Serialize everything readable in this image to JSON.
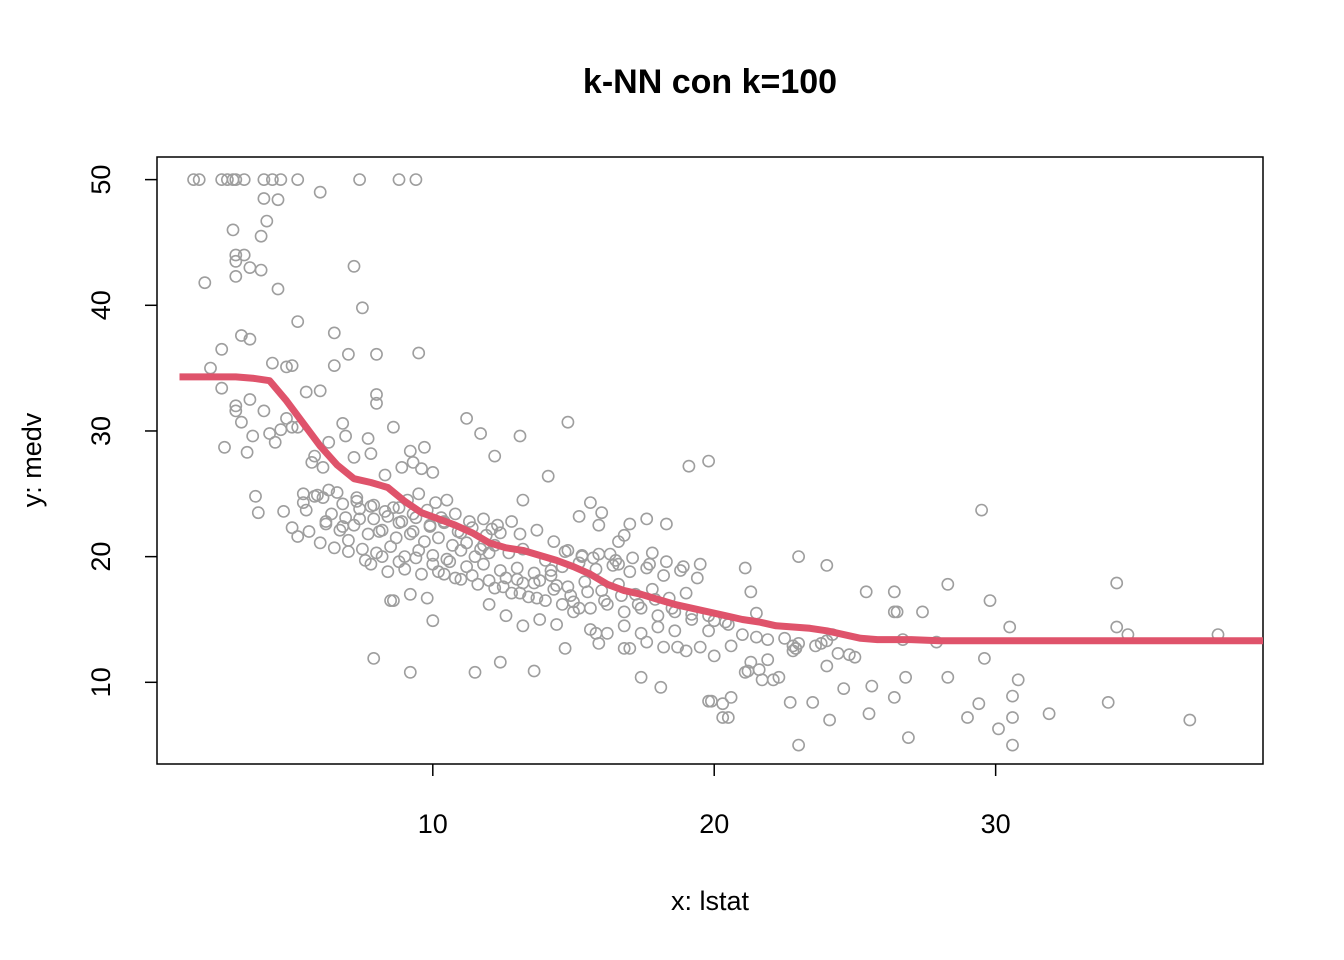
{
  "chart_data": {
    "type": "scatter",
    "title": "k-NN con k=100",
    "xlabel": "x: lstat",
    "ylabel": "y: medv",
    "xlim": [
      0.2,
      39.5
    ],
    "ylim": [
      3.5,
      51.8
    ],
    "xticks": [
      10,
      20,
      30
    ],
    "yticks": [
      10,
      20,
      30,
      40,
      50
    ],
    "grid": false,
    "legend": "none",
    "colors": {
      "points": "#9e9e9e",
      "fit": "#df536b"
    },
    "series": [
      {
        "kind": "scatter",
        "x": [
          1.5,
          1.7,
          2.5,
          2.7,
          2.9,
          3.0,
          3.3,
          4.0,
          4.3,
          4.6,
          5.2,
          6.0,
          7.4,
          8.8,
          9.4,
          1.9,
          2.1,
          2.5,
          2.9,
          3.0,
          3.3,
          3.5,
          3.9,
          4.0,
          4.5,
          3.0,
          3.0,
          3.2,
          3.5,
          3.9,
          4.1,
          3.0,
          3.5,
          3.6,
          4.5,
          5.2,
          6.5,
          7.2,
          7.5,
          8.0,
          9.5,
          2.5,
          3.0,
          4.0,
          4.3,
          4.8,
          5.0,
          5.5,
          6.0,
          6.5,
          7.0,
          8.0,
          2.6,
          3.2,
          3.4,
          3.7,
          4.2,
          4.6,
          5.0,
          5.7,
          6.3,
          6.8,
          7.7,
          8.0,
          8.6,
          9.2,
          9.7,
          4.4,
          4.8,
          5.2,
          5.8,
          6.1,
          6.9,
          7.2,
          7.8,
          8.3,
          8.9,
          9.3,
          9.6,
          10.0,
          3.8,
          4.7,
          5.4,
          6.1,
          6.6,
          7.3,
          7.9,
          8.6,
          9.1,
          9.5,
          10.1,
          10.5,
          5.0,
          5.5,
          6.2,
          6.8,
          7.4,
          8.1,
          8.8,
          9.3,
          9.9,
          10.4,
          11.0,
          5.2,
          5.6,
          6.0,
          6.5,
          7.0,
          7.5,
          8.0,
          8.5,
          9.0,
          9.5,
          10.0,
          10.5,
          11.0,
          11.5,
          12.0,
          5.4,
          5.9,
          6.4,
          6.9,
          7.4,
          7.9,
          8.4,
          8.9,
          9.4,
          9.9,
          10.4,
          10.9,
          11.4,
          11.9,
          12.4,
          5.8,
          6.3,
          6.8,
          7.3,
          7.8,
          8.3,
          8.8,
          9.3,
          9.8,
          10.3,
          10.8,
          11.3,
          11.8,
          12.3,
          12.8,
          6.2,
          6.7,
          7.2,
          7.7,
          8.2,
          8.7,
          9.2,
          9.7,
          10.2,
          10.7,
          11.2,
          11.7,
          12.2,
          12.7,
          13.2,
          7.0,
          7.6,
          8.2,
          8.8,
          9.4,
          10.0,
          10.6,
          11.2,
          11.8,
          12.4,
          13.0,
          13.6,
          14.2,
          7.8,
          8.4,
          9.0,
          9.6,
          10.2,
          10.8,
          11.4,
          12.0,
          12.6,
          13.2,
          13.8,
          14.4,
          8.6,
          9.2,
          9.8,
          10.4,
          11.0,
          11.6,
          12.2,
          12.8,
          13.4,
          14.0,
          14.6,
          15.2,
          11.2,
          11.7,
          12.2,
          13.1,
          14.8,
          15.9,
          16.8,
          17.6,
          18.3,
          19.1,
          19.8,
          12.0,
          12.6,
          13.2,
          13.8,
          14.4,
          15.0,
          15.6,
          16.2,
          16.8,
          17.4,
          18.0,
          18.6,
          12.5,
          13.1,
          13.7,
          14.3,
          14.9,
          15.5,
          16.1,
          16.7,
          17.3,
          17.9,
          18.5,
          19.2,
          13.0,
          13.6,
          14.2,
          14.8,
          15.4,
          16.0,
          16.6,
          17.2,
          17.8,
          18.4,
          19.0,
          14.0,
          14.6,
          15.2,
          15.8,
          16.4,
          17.0,
          17.6,
          18.2,
          18.8,
          19.4,
          15.0,
          15.6,
          16.2,
          16.8,
          17.4,
          18.0,
          18.6,
          19.2,
          19.8,
          20.4,
          14.7,
          15.3,
          15.9,
          16.5,
          17.1,
          17.7,
          18.3,
          18.9,
          19.5,
          11.8,
          12.1,
          13.2,
          14.1,
          15.2,
          15.6,
          16.0,
          16.6,
          17.0,
          17.8,
          15.8,
          17.0,
          17.6,
          18.2,
          19.0,
          19.5,
          20.0,
          20.5,
          21.0,
          21.5,
          19.8,
          20.5,
          21.1,
          21.7,
          22.3,
          22.9,
          23.5,
          24.1,
          20.0,
          20.6,
          21.3,
          21.9,
          22.8,
          23.6,
          24.2,
          24.8,
          21.1,
          21.3,
          21.5,
          21.9,
          22.5,
          23.0,
          23.8,
          24.4,
          23.0,
          24.0,
          25.4,
          26.4,
          26.4,
          27.4,
          28.3,
          29.5,
          29.8,
          26.4,
          26.8,
          27.9,
          28.3,
          29.0,
          29.4,
          30.6,
          30.8,
          31.9,
          25.6,
          26.5,
          26.9,
          29.6,
          30.1,
          30.6,
          30.6,
          22.8,
          23.0,
          24.0,
          24.6,
          25.0,
          34.3,
          34.3,
          34.7,
          37.9,
          34.0,
          36.9,
          20.3,
          19.9,
          19.8,
          20.6,
          20.3,
          22.7,
          22.9,
          24.0,
          25.5,
          26.7,
          30.5,
          16.8,
          17.4,
          18.1,
          18.7,
          21.2,
          21.6,
          22.1,
          13.1,
          13.7,
          14.3,
          14.8,
          15.3,
          15.7,
          16.3,
          16.6,
          7.9,
          8.5,
          9.2,
          10.0,
          11.5,
          12.4,
          13.6,
          14.7,
          15.9
        ],
        "y": [
          50,
          50,
          50,
          50,
          50,
          50,
          50,
          50,
          50,
          50,
          50,
          49,
          50,
          50,
          50,
          41.8,
          35,
          36.5,
          46,
          44,
          44,
          43,
          45.5,
          48.5,
          48.4,
          43.5,
          42.3,
          37.6,
          37.3,
          42.8,
          46.7,
          32,
          32.5,
          29.6,
          41.3,
          38.7,
          37.8,
          43.1,
          39.8,
          36.1,
          36.2,
          33.4,
          31.6,
          31.6,
          35.4,
          35.1,
          35.2,
          33.1,
          33.2,
          35.2,
          36.1,
          32.9,
          28.7,
          30.7,
          28.3,
          24.8,
          29.8,
          30.1,
          30.3,
          27.5,
          29.1,
          30.6,
          29.4,
          32.2,
          30.3,
          28.4,
          28.7,
          29.1,
          31.0,
          30.3,
          28.0,
          27.1,
          29.6,
          27.9,
          28.2,
          26.5,
          27.1,
          27.5,
          27.0,
          26.7,
          23.5,
          23.6,
          25.0,
          24.7,
          25.1,
          24.4,
          24.1,
          23.9,
          24.5,
          25.0,
          24.3,
          24.5,
          22.3,
          23.7,
          22.6,
          22.4,
          23.0,
          22.0,
          22.7,
          22.0,
          22.5,
          22.8,
          21.9,
          21.6,
          22.0,
          21.1,
          20.7,
          21.3,
          20.6,
          20.3,
          20.8,
          20.0,
          20.5,
          20.1,
          19.8,
          20.5,
          20.0,
          20.3,
          24.3,
          24.9,
          23.4,
          23.1,
          23.8,
          23.0,
          23.2,
          22.8,
          23.1,
          22.4,
          22.7,
          22.0,
          22.3,
          21.7,
          21.9,
          24.8,
          25.3,
          24.2,
          24.7,
          24.0,
          23.6,
          23.9,
          23.4,
          23.7,
          23.1,
          23.4,
          22.8,
          23.0,
          22.5,
          22.8,
          22.8,
          22.1,
          22.5,
          21.8,
          22.1,
          21.5,
          21.8,
          21.2,
          21.5,
          20.9,
          21.1,
          20.6,
          20.9,
          20.3,
          20.6,
          20.4,
          19.7,
          20.0,
          19.6,
          19.9,
          19.4,
          19.6,
          19.2,
          19.4,
          18.9,
          19.1,
          18.7,
          18.9,
          19.4,
          18.8,
          19.0,
          18.6,
          18.8,
          18.3,
          18.5,
          18.1,
          18.3,
          17.9,
          18.1,
          17.7,
          16.5,
          17.0,
          16.7,
          18.6,
          18.2,
          17.8,
          17.5,
          17.1,
          16.8,
          16.5,
          16.2,
          15.9,
          31.0,
          29.8,
          28.0,
          29.6,
          30.7,
          22.5,
          21.7,
          23.0,
          22.6,
          27.2,
          27.6,
          16.2,
          15.3,
          14.5,
          15.0,
          14.6,
          15.6,
          14.2,
          13.9,
          14.5,
          13.9,
          14.4,
          14.1,
          17.6,
          17.1,
          16.7,
          17.4,
          16.9,
          17.2,
          16.5,
          16.9,
          16.2,
          16.6,
          15.9,
          15.4,
          18.2,
          17.9,
          18.5,
          17.6,
          18.0,
          17.3,
          17.8,
          17.0,
          17.4,
          16.7,
          17.1,
          19.7,
          19.2,
          19.5,
          19.0,
          19.3,
          18.8,
          19.1,
          18.5,
          18.9,
          18.3,
          16.4,
          15.9,
          16.2,
          15.6,
          15.9,
          15.3,
          15.6,
          15.0,
          15.3,
          14.8,
          20.4,
          20.0,
          20.2,
          19.7,
          19.9,
          19.4,
          19.6,
          19.2,
          19.4,
          20.9,
          22.2,
          24.5,
          26.4,
          23.2,
          24.3,
          23.5,
          21.2,
          22.6,
          20.3,
          13.9,
          12.7,
          13.2,
          12.8,
          12.5,
          12.8,
          14.9,
          14.6,
          13.8,
          13.6,
          8.5,
          7.2,
          10.8,
          10.2,
          10.4,
          12.7,
          8.4,
          7.0,
          12.1,
          12.9,
          11.6,
          11.8,
          12.9,
          12.9,
          13.8,
          12.2,
          19.1,
          17.2,
          15.5,
          13.4,
          13.5,
          13.1,
          13.1,
          12.3,
          20.0,
          19.3,
          17.2,
          17.2,
          15.6,
          15.6,
          17.8,
          23.7,
          16.5,
          8.8,
          10.4,
          13.2,
          10.4,
          7.2,
          8.3,
          8.9,
          10.2,
          7.5,
          9.7,
          15.6,
          5.6,
          11.9,
          6.3,
          5.0,
          7.2,
          12.5,
          5.0,
          11.3,
          9.5,
          12.0,
          17.9,
          14.4,
          13.8,
          13.8,
          8.4,
          7.0,
          8.3,
          8.5,
          14.1,
          8.8,
          7.2,
          8.4,
          12.7,
          13.3,
          7.5,
          13.4,
          14.4,
          12.7,
          10.4,
          9.6,
          12.8,
          10.9,
          11.0,
          10.2,
          21.8,
          22.1,
          21.2,
          20.5,
          20.1,
          19.9,
          20.2,
          19.4,
          11.9,
          16.5,
          10.8,
          14.9,
          10.8,
          11.6,
          10.9,
          12.7,
          13.1
        ]
      },
      {
        "kind": "line",
        "x": [
          1.0,
          2.0,
          3.0,
          3.6,
          4.2,
          4.8,
          5.4,
          6.0,
          6.6,
          7.2,
          7.8,
          8.4,
          9.0,
          9.6,
          10.2,
          10.8,
          11.4,
          12.0,
          12.6,
          13.2,
          13.8,
          14.4,
          15.0,
          15.6,
          16.2,
          16.8,
          17.4,
          18.0,
          18.6,
          19.2,
          19.8,
          20.4,
          21.0,
          21.6,
          22.2,
          22.8,
          23.4,
          24.0,
          24.6,
          25.2,
          25.8,
          26.4,
          27.0,
          28.0,
          30.0,
          32.0,
          34.0,
          36.0,
          38.0,
          39.5
        ],
        "y": [
          34.3,
          34.3,
          34.3,
          34.2,
          34.0,
          32.4,
          30.6,
          28.8,
          27.3,
          26.2,
          25.9,
          25.5,
          24.4,
          23.5,
          23.0,
          22.5,
          21.9,
          21.1,
          20.7,
          20.5,
          20.1,
          19.7,
          19.2,
          18.6,
          17.8,
          17.3,
          17.0,
          16.6,
          16.2,
          15.9,
          15.6,
          15.3,
          15.0,
          14.8,
          14.5,
          14.4,
          14.3,
          14.1,
          13.8,
          13.5,
          13.4,
          13.4,
          13.4,
          13.3,
          13.3,
          13.3,
          13.3,
          13.3,
          13.3,
          13.3
        ]
      }
    ]
  }
}
